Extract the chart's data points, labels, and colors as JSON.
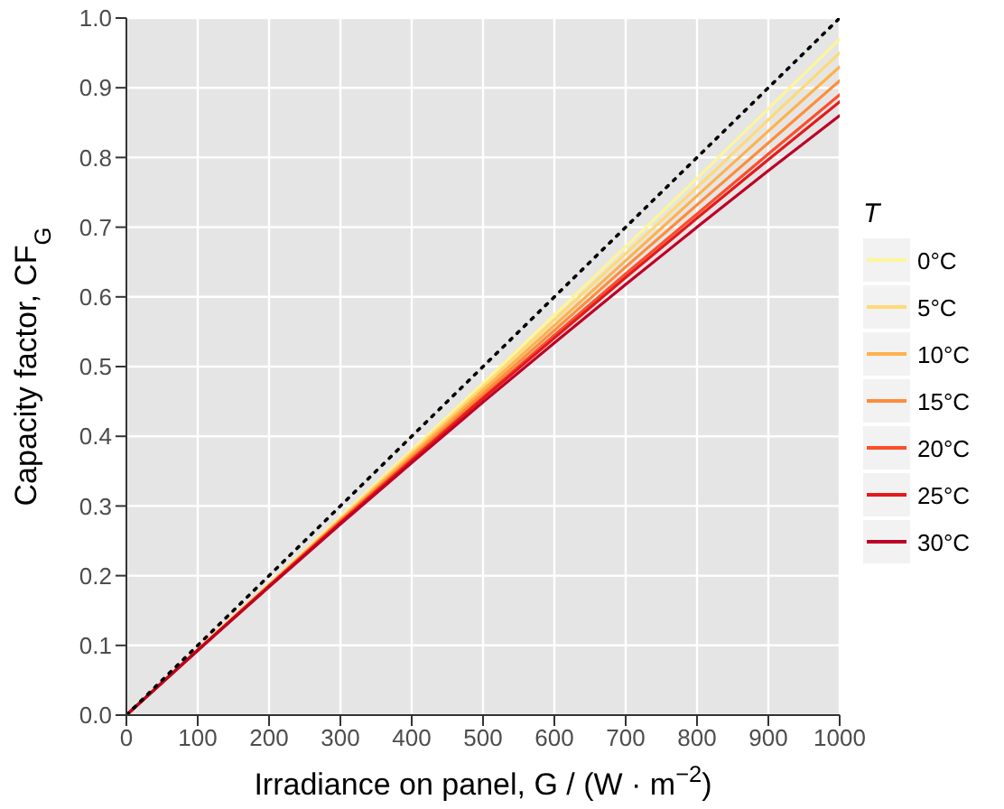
{
  "chart_data": {
    "type": "line",
    "xlabel": "Irradiance on panel,  G / (W · m$^{−2}$)",
    "ylabel": "Capacity factor,  CF$_{G}$",
    "legend_title": "T",
    "legend": "right",
    "grid": true,
    "line_style": "solid",
    "marker": "none",
    "x": [
      0,
      100,
      200,
      300,
      400,
      500,
      600,
      700,
      800,
      900,
      1000
    ],
    "series": [
      {
        "name": "0°C",
        "color": "#fdf59a",
        "values": [
          0,
          0.094,
          0.188,
          0.284,
          0.38,
          0.476,
          0.574,
          0.672,
          0.77,
          0.87,
          0.97
        ]
      },
      {
        "name": "5°C",
        "color": "#fed976",
        "values": [
          0,
          0.094,
          0.187,
          0.282,
          0.377,
          0.471,
          0.567,
          0.662,
          0.757,
          0.854,
          0.95
        ]
      },
      {
        "name": "10°C",
        "color": "#feb24c",
        "values": [
          0,
          0.094,
          0.187,
          0.28,
          0.373,
          0.466,
          0.559,
          0.652,
          0.745,
          0.838,
          0.93
        ]
      },
      {
        "name": "15°C",
        "color": "#fd8d3c",
        "values": [
          0,
          0.093,
          0.186,
          0.279,
          0.37,
          0.461,
          0.552,
          0.643,
          0.732,
          0.821,
          0.91
        ]
      },
      {
        "name": "20°C",
        "color": "#fc4e2a",
        "values": [
          0,
          0.093,
          0.185,
          0.277,
          0.367,
          0.456,
          0.545,
          0.633,
          0.719,
          0.805,
          0.89
        ]
      },
      {
        "name": "25°C",
        "color": "#e31a1c",
        "values": [
          0,
          0.093,
          0.185,
          0.276,
          0.365,
          0.454,
          0.541,
          0.628,
          0.713,
          0.797,
          0.88
        ]
      },
      {
        "name": "30°C",
        "color": "#bd0026",
        "values": [
          0,
          0.093,
          0.184,
          0.274,
          0.362,
          0.449,
          0.534,
          0.618,
          0.7,
          0.781,
          0.86
        ]
      },
      {
        "color": "#000000",
        "line_style": "dotted",
        "x": [
          0,
          1000
        ],
        "values": [
          0,
          1
        ]
      }
    ],
    "xlim": [
      0,
      1000
    ],
    "xticks": [
      0,
      100,
      200,
      300,
      400,
      500,
      600,
      700,
      800,
      900,
      1000
    ],
    "ylim": [
      0,
      1
    ],
    "yticks": [
      {
        "value": 0,
        "label": "0.0"
      },
      0.1,
      0.2,
      0.3,
      0.4,
      0.5,
      0.6,
      0.7,
      0.8,
      0.9,
      {
        "value": 1,
        "label": "1.0"
      }
    ]
  }
}
